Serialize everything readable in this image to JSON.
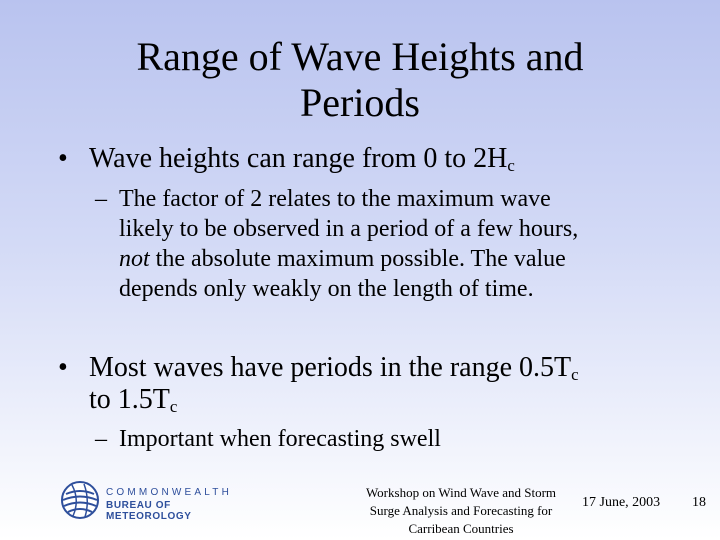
{
  "slide": {
    "title_line1": "Range of Wave Heights and",
    "title_line2": "Periods",
    "bullet_char": "•",
    "dash_char": "–",
    "bullet1": {
      "text": "Wave heights can range from 0 to 2H",
      "sub": "c"
    },
    "sub1": {
      "line1": "The factor of 2 relates to the maximum wave",
      "line2": "likely to be observed in a period of a few hours,",
      "line3_em": "not",
      "line3_rest": " the absolute maximum possible. The value",
      "line4": "depends only weakly on the length of time."
    },
    "bullet2": {
      "line1": "Most waves have periods in the range 0.5T",
      "line1_sub": "c",
      "line2": "to 1.5T",
      "line2_sub": "c"
    },
    "sub2": {
      "line1": "Important when forecasting swell"
    }
  },
  "footer": {
    "logo_line1": "COMMONWEALTH",
    "logo_line2": "BUREAU OF METEOROLOGY",
    "center_line1": "Workshop on Wind Wave and Storm",
    "center_line2": "Surge Analysis and Forecasting for",
    "center_line3": "Carribean Countries",
    "date": "17 June, 2003",
    "page_number": "18",
    "logo_color": "#2e4f9c"
  }
}
